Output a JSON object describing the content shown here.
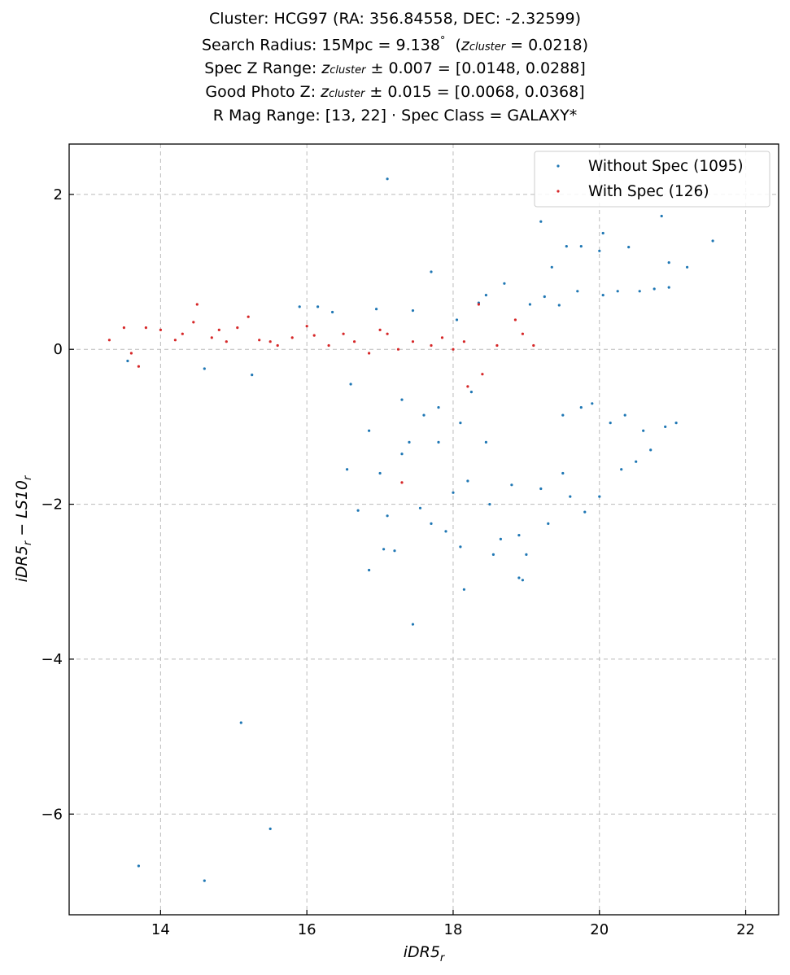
{
  "title": {
    "line1": "Cluster: HCG97 (RA: 356.84558, DEC: -2.32599)",
    "line2_prefix": "Search Radius: 15Mpc = 9.138",
    "line2_degree": "°",
    "line2_z": "z",
    "line2_sub": "cluster",
    "line2_suffix": " = 0.0218)",
    "line3_prefix": "Spec Z Range: ",
    "line3_z": "z",
    "line3_sub": "cluster",
    "line3_suffix": " ± 0.007 = [0.0148, 0.0288]",
    "line4_prefix": "Good Photo Z: ",
    "line4_z": "z",
    "line4_sub": "cluster",
    "line4_suffix": " ± 0.015 = [0.0068, 0.0368]",
    "line5": "R Mag Range: [13, 22] · Spec Class = GALAXY*"
  },
  "chart_data": {
    "type": "scatter",
    "xlabel": "iDR5_r",
    "ylabel": "iDR5_r − LS10_r",
    "xlim": [
      12.75,
      22.45
    ],
    "ylim": [
      -7.3,
      2.65
    ],
    "xticks": [
      14,
      16,
      18,
      20,
      22
    ],
    "yticks": [
      -6,
      -4,
      -2,
      0,
      2
    ],
    "grid": true,
    "legend_position": "top-right",
    "colors": {
      "without_spec": "#1f77b4",
      "with_spec": "#d62728"
    },
    "series": [
      {
        "name": "Without Spec (1095)",
        "key": "without_spec",
        "count": 1095,
        "points": [
          [
            13.7,
            -6.67
          ],
          [
            14.6,
            -6.86
          ],
          [
            15.1,
            -4.82
          ],
          [
            15.5,
            -6.19
          ],
          [
            17.1,
            2.2
          ],
          [
            17.7,
            1.0
          ],
          [
            17.45,
            -3.55
          ],
          [
            16.85,
            -2.85
          ],
          [
            18.15,
            -3.1
          ],
          [
            18.9,
            -2.95
          ],
          [
            18.95,
            -2.98
          ],
          [
            19.2,
            1.65
          ],
          [
            20.0,
            1.27
          ],
          [
            20.05,
            1.5
          ],
          [
            20.85,
            1.72
          ],
          [
            21.55,
            1.4
          ],
          [
            19.55,
            1.33
          ],
          [
            19.75,
            1.33
          ],
          [
            20.4,
            1.32
          ],
          [
            21.2,
            1.06
          ],
          [
            19.35,
            1.06
          ],
          [
            20.95,
            1.12
          ],
          [
            13.55,
            -0.15
          ],
          [
            14.6,
            -0.25
          ],
          [
            15.25,
            -0.33
          ],
          [
            16.35,
            0.48
          ],
          [
            17.0,
            -1.6
          ],
          [
            17.1,
            -2.15
          ],
          [
            17.3,
            -1.35
          ],
          [
            17.4,
            -1.2
          ],
          [
            17.55,
            -2.05
          ],
          [
            17.7,
            -2.25
          ],
          [
            17.8,
            -1.2
          ],
          [
            17.9,
            -2.35
          ],
          [
            18.0,
            -1.85
          ],
          [
            18.1,
            -2.55
          ],
          [
            18.2,
            -1.7
          ],
          [
            18.45,
            -1.2
          ],
          [
            18.5,
            -2.0
          ],
          [
            18.55,
            -2.65
          ],
          [
            18.65,
            -2.45
          ],
          [
            18.8,
            -1.75
          ],
          [
            18.9,
            -2.4
          ],
          [
            19.0,
            -2.65
          ],
          [
            19.2,
            -1.8
          ],
          [
            19.3,
            -2.25
          ],
          [
            19.5,
            -1.6
          ],
          [
            19.6,
            -1.9
          ],
          [
            19.8,
            -2.1
          ],
          [
            20.0,
            -1.9
          ],
          [
            20.3,
            -1.55
          ],
          [
            20.5,
            -1.45
          ],
          [
            20.7,
            -1.3
          ],
          [
            16.6,
            -0.45
          ],
          [
            16.55,
            -1.55
          ],
          [
            16.7,
            -2.08
          ],
          [
            17.2,
            -2.6
          ],
          [
            17.05,
            -2.58
          ],
          [
            16.85,
            -1.05
          ],
          [
            17.6,
            -0.85
          ],
          [
            17.3,
            -0.65
          ],
          [
            17.8,
            -0.75
          ],
          [
            18.1,
            -0.95
          ],
          [
            18.25,
            -0.55
          ],
          [
            18.35,
            0.6
          ],
          [
            18.45,
            0.7
          ],
          [
            18.7,
            0.85
          ],
          [
            19.05,
            0.58
          ],
          [
            19.25,
            0.68
          ],
          [
            19.45,
            0.57
          ],
          [
            19.7,
            0.75
          ],
          [
            20.05,
            0.7
          ],
          [
            20.25,
            0.75
          ],
          [
            20.55,
            0.75
          ],
          [
            20.75,
            0.78
          ],
          [
            20.95,
            0.8
          ],
          [
            15.9,
            0.55
          ],
          [
            16.15,
            0.55
          ],
          [
            16.95,
            0.52
          ],
          [
            17.45,
            0.5
          ],
          [
            18.05,
            0.38
          ],
          [
            19.5,
            -0.85
          ],
          [
            19.75,
            -0.75
          ],
          [
            19.9,
            -0.7
          ],
          [
            20.15,
            -0.95
          ],
          [
            20.35,
            -0.85
          ],
          [
            20.6,
            -1.05
          ],
          [
            20.9,
            -1.0
          ],
          [
            21.05,
            -0.95
          ]
        ]
      },
      {
        "name": "With Spec (126)",
        "key": "with_spec",
        "count": 126,
        "points": [
          [
            13.3,
            0.12
          ],
          [
            13.5,
            0.28
          ],
          [
            13.6,
            -0.05
          ],
          [
            13.7,
            -0.22
          ],
          [
            13.8,
            0.28
          ],
          [
            14.0,
            0.25
          ],
          [
            14.2,
            0.12
          ],
          [
            14.3,
            0.2
          ],
          [
            14.45,
            0.35
          ],
          [
            14.5,
            0.58
          ],
          [
            14.7,
            0.15
          ],
          [
            14.8,
            0.25
          ],
          [
            14.9,
            0.1
          ],
          [
            15.05,
            0.28
          ],
          [
            15.2,
            0.42
          ],
          [
            15.35,
            0.12
          ],
          [
            15.5,
            0.1
          ],
          [
            15.6,
            0.05
          ],
          [
            15.8,
            0.15
          ],
          [
            16.0,
            0.3
          ],
          [
            16.1,
            0.18
          ],
          [
            16.3,
            0.05
          ],
          [
            16.5,
            0.2
          ],
          [
            16.65,
            0.1
          ],
          [
            16.85,
            -0.05
          ],
          [
            17.0,
            0.25
          ],
          [
            17.1,
            0.2
          ],
          [
            17.25,
            0.0
          ],
          [
            17.3,
            -1.72
          ],
          [
            17.45,
            0.1
          ],
          [
            17.7,
            0.05
          ],
          [
            17.85,
            0.15
          ],
          [
            18.0,
            0.0
          ],
          [
            18.15,
            0.1
          ],
          [
            18.2,
            -0.48
          ],
          [
            18.35,
            0.58
          ],
          [
            18.4,
            -0.32
          ],
          [
            18.6,
            0.05
          ],
          [
            18.85,
            0.38
          ],
          [
            18.95,
            0.2
          ],
          [
            19.1,
            0.05
          ]
        ]
      }
    ]
  }
}
